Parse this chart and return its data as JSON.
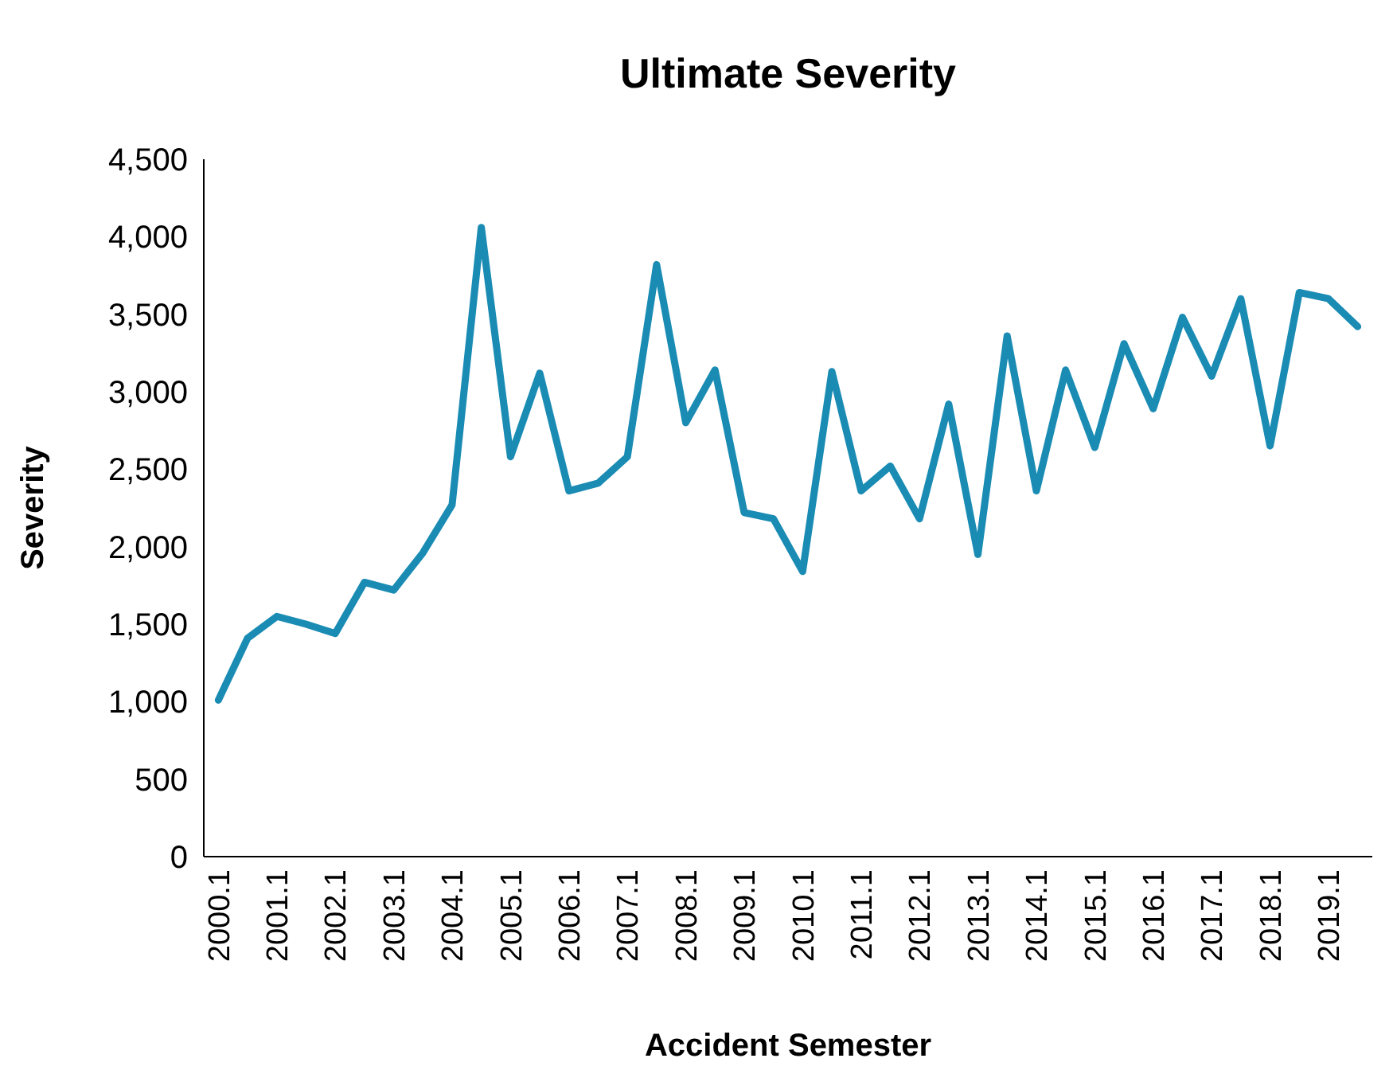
{
  "chart_data": {
    "type": "line",
    "title": "Ultimate Severity",
    "xlabel": "Accident Semester",
    "ylabel": "Severity",
    "categories": [
      "2000.1",
      null,
      "2001.1",
      null,
      "2002.1",
      null,
      "2003.1",
      null,
      "2004.1",
      null,
      "2005.1",
      null,
      "2006.1",
      null,
      "2007.1",
      null,
      "2008.1",
      null,
      "2009.1",
      null,
      "2010.1",
      null,
      "2011.1",
      null,
      "2012.1",
      null,
      "2013.1",
      null,
      "2014.1",
      null,
      "2015.1",
      null,
      "2016.1",
      null,
      "2017.1",
      null,
      "2018.1",
      null,
      "2019.1",
      null
    ],
    "series": [
      {
        "color": "#1a8cb4",
        "values": [
          1010,
          1410,
          1550,
          1500,
          1440,
          1770,
          1720,
          1960,
          2270,
          4060,
          2580,
          3120,
          2360,
          2410,
          2580,
          3820,
          2800,
          3140,
          2220,
          2180,
          1840,
          3130,
          2360,
          2520,
          2180,
          2920,
          1950,
          3360,
          2360,
          3140,
          2640,
          3310,
          2890,
          3480,
          3100,
          3600,
          2650,
          3640,
          3600,
          3420
        ]
      }
    ],
    "ylim": [
      0,
      4500
    ],
    "yticks": [
      {
        "value": 0,
        "label": "0"
      },
      {
        "value": 500,
        "label": "500"
      },
      {
        "value": 1000,
        "label": "1,000"
      },
      {
        "value": 1500,
        "label": "1,500"
      },
      {
        "value": 2000,
        "label": "2,000"
      },
      {
        "value": 2500,
        "label": "2,500"
      },
      {
        "value": 3000,
        "label": "3,000"
      },
      {
        "value": 3500,
        "label": "3,500"
      },
      {
        "value": 4000,
        "label": "4,000"
      },
      {
        "value": 4500,
        "label": "4,500"
      }
    ],
    "grid": false,
    "marker": "none",
    "line_style": "solid"
  }
}
